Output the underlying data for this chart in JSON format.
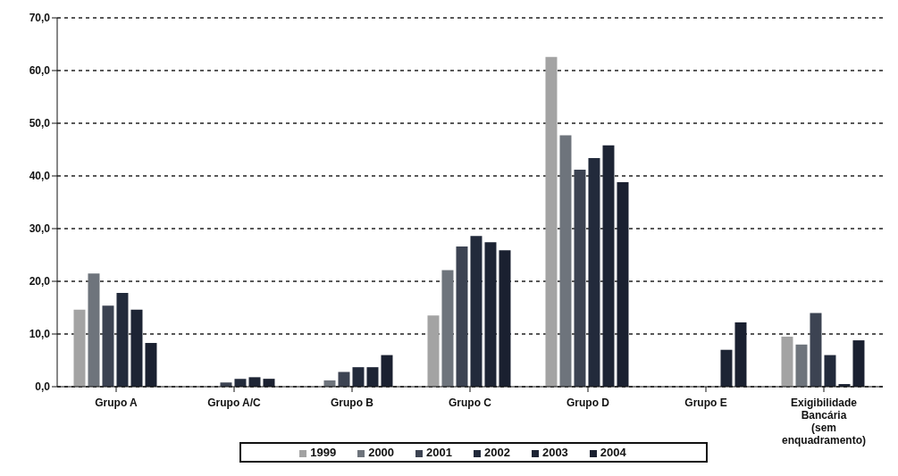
{
  "chart_data": {
    "type": "bar",
    "categories": [
      "Grupo A",
      "Grupo A/C",
      "Grupo B",
      "Grupo C",
      "Grupo D",
      "Grupo E",
      "Exigibilidade Bancária (sem enquadramento)"
    ],
    "series": [
      {
        "name": "1999",
        "color": "#a3a3a3",
        "values": [
          14.6,
          null,
          null,
          13.5,
          62.6,
          null,
          9.5
        ]
      },
      {
        "name": "2000",
        "color": "#6e747c",
        "values": [
          21.5,
          null,
          1.2,
          22.1,
          47.7,
          null,
          8.0
        ]
      },
      {
        "name": "2001",
        "color": "#3c4352",
        "values": [
          15.4,
          0.8,
          2.8,
          26.6,
          41.2,
          null,
          14.0
        ]
      },
      {
        "name": "2002",
        "color": "#222a3b",
        "values": [
          17.8,
          1.5,
          3.7,
          28.6,
          43.4,
          null,
          6.0
        ]
      },
      {
        "name": "2003",
        "color": "#1d2434",
        "values": [
          14.6,
          1.8,
          3.7,
          27.4,
          45.8,
          7.0,
          0.5
        ]
      },
      {
        "name": "2004",
        "color": "#1a2030",
        "values": [
          8.3,
          1.5,
          6.0,
          25.9,
          38.8,
          12.2,
          8.8
        ]
      }
    ],
    "ylim": [
      0,
      70
    ],
    "yticks": [
      {
        "value": 0,
        "label": "0,0"
      },
      {
        "value": 10,
        "label": "10,0"
      },
      {
        "value": 20,
        "label": "20,0"
      },
      {
        "value": 30,
        "label": "30,0"
      },
      {
        "value": 40,
        "label": "40,0"
      },
      {
        "value": 50,
        "label": "50,0"
      },
      {
        "value": 60,
        "label": "60,0"
      },
      {
        "value": 70,
        "label": "70,0"
      }
    ],
    "grid": "y",
    "legend": "bottom"
  }
}
